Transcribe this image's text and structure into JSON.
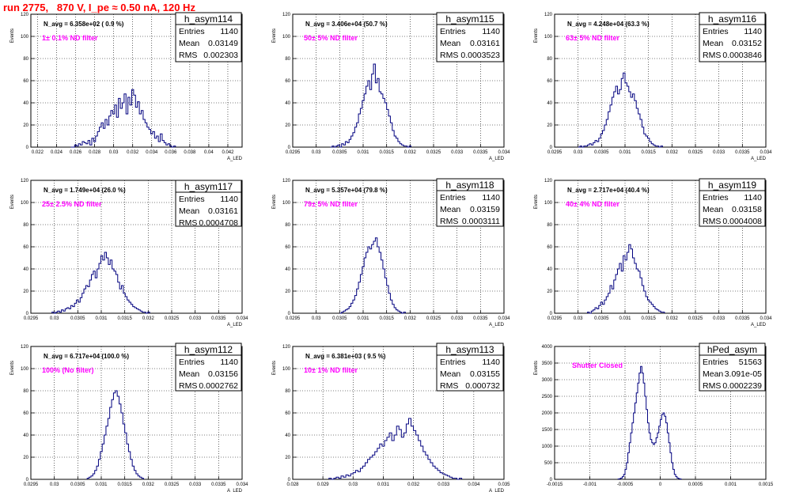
{
  "header": {
    "title": "run 2775,   870 V, I_pe ≈ 0.50 nA, 120 Hz",
    "title_color": "#ff0000"
  },
  "style": {
    "histogram_color": "#00007f",
    "annotation_color": "#ff00ff",
    "grid_color": "#000000"
  },
  "chart_data": [
    {
      "type": "bar",
      "name": "h_asym114",
      "navg": "N_avg = 6.358e+02 ( 0.9 %)",
      "filter": "1± 0.1% ND filter",
      "stats": [
        {
          "label": "Entries",
          "value": "1140"
        },
        {
          "label": "Mean",
          "value": "0.03149"
        },
        {
          "label": "RMS",
          "value": "0.002303"
        }
      ],
      "xlabel": "A_LED",
      "ylabel": "Events",
      "xlim": [
        0.0213,
        0.0435
      ],
      "ylim": [
        0,
        120
      ],
      "x_ticks": [
        "0.022",
        "0.024",
        "0.026",
        "0.028",
        "0.03",
        "0.032",
        "0.034",
        "0.036",
        "0.038",
        "0.04",
        "0.042"
      ],
      "x_tick_values": [
        0.022,
        0.024,
        0.026,
        0.028,
        0.03,
        0.032,
        0.034,
        0.036,
        0.038,
        0.04,
        0.042
      ],
      "y_ticks": [
        0,
        20,
        40,
        60,
        80,
        100,
        120
      ],
      "bin_start": 0.0255,
      "bin_width": 0.0002,
      "values": [
        0,
        0,
        2,
        1,
        3,
        2,
        5,
        4,
        3,
        6,
        2,
        8,
        5,
        10,
        14,
        18,
        22,
        17,
        25,
        20,
        28,
        33,
        30,
        38,
        27,
        44,
        35,
        40,
        48,
        30,
        45,
        38,
        52,
        47,
        36,
        41,
        30,
        33,
        25,
        22,
        18,
        16,
        12,
        14,
        8,
        10,
        5,
        12,
        6,
        4,
        2,
        3,
        1,
        0,
        1
      ]
    },
    {
      "type": "bar",
      "name": "h_asym115",
      "navg": "N_avg = 3.406e+04 (50.7 %)",
      "filter": "50± 5% ND filter",
      "stats": [
        {
          "label": "Entries",
          "value": "1140"
        },
        {
          "label": "Mean",
          "value": "0.03161"
        },
        {
          "label": "RMS",
          "value": "0.0003523"
        }
      ],
      "xlabel": "A_LED",
      "ylabel": "Events",
      "xlim": [
        0.0295,
        0.034
      ],
      "ylim": [
        0,
        120
      ],
      "x_ticks": [
        "0.0295",
        "0.03",
        "0.0305",
        "0.031",
        "0.0315",
        "0.032",
        "0.0325",
        "0.033",
        "0.0335",
        "0.034"
      ],
      "x_tick_values": [
        0.0295,
        0.03,
        0.0305,
        0.031,
        0.0315,
        0.032,
        0.0325,
        0.033,
        0.0335,
        0.034
      ],
      "y_ticks": [
        0,
        20,
        40,
        60,
        80,
        100,
        120
      ],
      "bin_start": 0.0303,
      "bin_width": 4e-05,
      "values": [
        0,
        1,
        0,
        1,
        2,
        0,
        3,
        2,
        5,
        4,
        7,
        10,
        13,
        18,
        22,
        30,
        35,
        42,
        48,
        55,
        60,
        52,
        66,
        75,
        58,
        62,
        50,
        48,
        44,
        40,
        34,
        28,
        22,
        15,
        10,
        8,
        5,
        3,
        2,
        1,
        1,
        0,
        1
      ]
    },
    {
      "type": "bar",
      "name": "h_asym116",
      "navg": "N_avg = 4.248e+04 (63.3 %)",
      "filter": "63± 5% ND filter",
      "stats": [
        {
          "label": "Entries",
          "value": "1140"
        },
        {
          "label": "Mean",
          "value": "0.03152"
        },
        {
          "label": "RMS",
          "value": "0.0003846"
        }
      ],
      "xlabel": "A_LED",
      "ylabel": "Events",
      "xlim": [
        0.0295,
        0.034
      ],
      "ylim": [
        0,
        120
      ],
      "x_ticks": [
        "0.0295",
        "0.03",
        "0.0305",
        "0.031",
        "0.0315",
        "0.032",
        "0.0325",
        "0.033",
        "0.0335",
        "0.034"
      ],
      "x_tick_values": [
        0.0295,
        0.03,
        0.0305,
        0.031,
        0.0315,
        0.032,
        0.0325,
        0.033,
        0.0335,
        0.034
      ],
      "y_ticks": [
        0,
        20,
        40,
        60,
        80,
        100,
        120
      ],
      "bin_start": 0.03,
      "bin_width": 4e-05,
      "values": [
        0,
        1,
        0,
        1,
        1,
        2,
        3,
        2,
        4,
        6,
        5,
        8,
        12,
        15,
        20,
        25,
        32,
        38,
        45,
        50,
        55,
        48,
        52,
        62,
        67,
        58,
        55,
        50,
        45,
        48,
        42,
        35,
        30,
        25,
        18,
        12,
        10,
        8,
        5,
        3,
        2,
        1,
        1,
        0,
        1
      ]
    },
    {
      "type": "bar",
      "name": "h_asym117",
      "navg": "N_avg = 1.749e+04 (26.0 %)",
      "filter": "25± 2.5% ND filter",
      "stats": [
        {
          "label": "Entries",
          "value": "1140"
        },
        {
          "label": "Mean",
          "value": "0.03161"
        },
        {
          "label": "RMS",
          "value": "0.0004708"
        }
      ],
      "xlabel": "A_LED",
      "ylabel": "Events",
      "xlim": [
        0.0295,
        0.034
      ],
      "ylim": [
        0,
        120
      ],
      "x_ticks": [
        "0.0295",
        "0.03",
        "0.0305",
        "0.031",
        "0.0315",
        "0.032",
        "0.0325",
        "0.033",
        "0.0335",
        "0.034"
      ],
      "x_tick_values": [
        0.0295,
        0.03,
        0.0305,
        0.031,
        0.0315,
        0.032,
        0.0325,
        0.033,
        0.0335,
        0.034
      ],
      "y_ticks": [
        0,
        20,
        40,
        60,
        80,
        100,
        120
      ],
      "bin_start": 0.02995,
      "bin_width": 4e-05,
      "values": [
        1,
        0,
        1,
        2,
        1,
        3,
        2,
        4,
        5,
        4,
        7,
        6,
        9,
        12,
        10,
        14,
        18,
        22,
        25,
        24,
        30,
        35,
        38,
        32,
        40,
        45,
        52,
        48,
        55,
        50,
        44,
        48,
        40,
        38,
        35,
        28,
        22,
        25,
        18,
        15,
        12,
        10,
        8,
        6,
        5,
        4,
        3,
        2,
        1,
        1,
        0,
        1
      ]
    },
    {
      "type": "bar",
      "name": "h_asym118",
      "navg": "N_avg = 5.357e+04 (79.8 %)",
      "filter": "79± 5% ND filter",
      "stats": [
        {
          "label": "Entries",
          "value": "1140"
        },
        {
          "label": "Mean",
          "value": "0.03159"
        },
        {
          "label": "RMS",
          "value": "0.0003111"
        }
      ],
      "xlabel": "A_LED",
      "ylabel": "Events",
      "xlim": [
        0.0295,
        0.034
      ],
      "ylim": [
        0,
        120
      ],
      "x_ticks": [
        "0.0295",
        "0.03",
        "0.0305",
        "0.031",
        "0.0315",
        "0.032",
        "0.0325",
        "0.033",
        "0.0335",
        "0.034"
      ],
      "x_tick_values": [
        0.0295,
        0.03,
        0.0305,
        0.031,
        0.0315,
        0.032,
        0.0325,
        0.033,
        0.0335,
        0.034
      ],
      "y_ticks": [
        0,
        20,
        40,
        60,
        80,
        100,
        120
      ],
      "bin_start": 0.0305,
      "bin_width": 4e-05,
      "values": [
        0,
        1,
        2,
        3,
        4,
        6,
        9,
        12,
        16,
        22,
        28,
        35,
        42,
        50,
        55,
        60,
        58,
        62,
        65,
        68,
        60,
        55,
        48,
        40,
        32,
        25,
        18,
        12,
        8,
        5,
        3,
        2,
        1,
        0,
        1
      ]
    },
    {
      "type": "bar",
      "name": "h_asym119",
      "navg": "N_avg = 2.717e+04 (40.4 %)",
      "filter": "40± 4% ND filter",
      "stats": [
        {
          "label": "Entries",
          "value": "1140"
        },
        {
          "label": "Mean",
          "value": "0.03158"
        },
        {
          "label": "RMS",
          "value": "0.0004008"
        }
      ],
      "xlabel": "A_LED",
      "ylabel": "Events",
      "xlim": [
        0.0295,
        0.034
      ],
      "ylim": [
        0,
        120
      ],
      "x_ticks": [
        "0.0295",
        "0.03",
        "0.0305",
        "0.031",
        "0.0315",
        "0.032",
        "0.0325",
        "0.033",
        "0.0335",
        "0.034"
      ],
      "x_tick_values": [
        0.0295,
        0.03,
        0.0305,
        0.031,
        0.0315,
        0.032,
        0.0325,
        0.033,
        0.0335,
        0.034
      ],
      "y_ticks": [
        0,
        20,
        40,
        60,
        80,
        100,
        120
      ],
      "bin_start": 0.0302,
      "bin_width": 4e-05,
      "values": [
        1,
        0,
        2,
        3,
        5,
        4,
        7,
        10,
        8,
        12,
        15,
        18,
        25,
        22,
        30,
        35,
        40,
        45,
        38,
        52,
        48,
        55,
        62,
        58,
        50,
        45,
        40,
        38,
        32,
        25,
        20,
        15,
        12,
        10,
        8,
        6,
        4,
        3,
        2,
        1,
        1
      ]
    },
    {
      "type": "bar",
      "name": "h_asym112",
      "navg": "N_avg = 6.717e+04 (100.0 %)",
      "filter": "100% (No filter)",
      "stats": [
        {
          "label": "Entries",
          "value": "1140"
        },
        {
          "label": "Mean",
          "value": "0.03156"
        },
        {
          "label": "RMS",
          "value": "0.0002762"
        }
      ],
      "xlabel": "A_LED",
      "ylabel": "Events",
      "xlim": [
        0.0295,
        0.034
      ],
      "ylim": [
        0,
        120
      ],
      "x_ticks": [
        "0.0295",
        "0.03",
        "0.0305",
        "0.031",
        "0.0315",
        "0.032",
        "0.0325",
        "0.033",
        "0.0335",
        "0.034"
      ],
      "x_tick_values": [
        0.0295,
        0.03,
        0.0305,
        0.031,
        0.0315,
        0.032,
        0.0325,
        0.033,
        0.0335,
        0.034
      ],
      "y_ticks": [
        0,
        20,
        40,
        60,
        80,
        100,
        120
      ],
      "bin_start": 0.0307,
      "bin_width": 4e-05,
      "values": [
        1,
        2,
        3,
        5,
        8,
        12,
        18,
        25,
        32,
        40,
        48,
        55,
        65,
        72,
        78,
        80,
        75,
        68,
        60,
        50,
        42,
        32,
        25,
        18,
        12,
        8,
        5,
        3,
        2,
        1
      ]
    },
    {
      "type": "bar",
      "name": "h_asym113",
      "navg": "N_avg = 6.381e+03 ( 9.5 %)",
      "filter": "10± 1% ND filter",
      "stats": [
        {
          "label": "Entries",
          "value": "1140"
        },
        {
          "label": "Mean",
          "value": "0.03155"
        },
        {
          "label": "RMS",
          "value": "0.000732"
        }
      ],
      "xlabel": "A_LED",
      "ylabel": "Events",
      "xlim": [
        0.028,
        0.035
      ],
      "ylim": [
        0,
        120
      ],
      "x_ticks": [
        "0.028",
        "0.029",
        "0.03",
        "0.031",
        "0.032",
        "0.033",
        "0.034",
        "0.035"
      ],
      "x_tick_values": [
        0.028,
        0.029,
        0.03,
        0.031,
        0.032,
        0.033,
        0.034,
        0.035
      ],
      "y_ticks": [
        0,
        20,
        40,
        60,
        80,
        100,
        120
      ],
      "bin_start": 0.0292,
      "bin_width": 8e-05,
      "values": [
        1,
        0,
        1,
        2,
        1,
        3,
        2,
        4,
        3,
        5,
        6,
        8,
        7,
        10,
        12,
        15,
        18,
        20,
        22,
        25,
        28,
        32,
        30,
        35,
        38,
        42,
        35,
        40,
        48,
        45,
        38,
        42,
        50,
        55,
        48,
        44,
        40,
        35,
        30,
        25,
        22,
        18,
        15,
        12,
        10,
        8,
        6,
        5,
        4,
        3,
        2,
        1,
        1,
        0,
        1
      ]
    },
    {
      "type": "bar",
      "name": "hPed_asym",
      "navg": "",
      "filter": "Shutter Closed",
      "stats": [
        {
          "label": "Entries",
          "value": "51563"
        },
        {
          "label": "Mean",
          "value": "3.091e-05"
        },
        {
          "label": "RMS",
          "value": "0.0002239"
        }
      ],
      "xlabel": "",
      "ylabel": "Events",
      "xlim": [
        -0.0015,
        0.0015
      ],
      "ylim": [
        0,
        4000
      ],
      "x_ticks": [
        "-0.0015",
        "-0.001",
        "-0.0005",
        "0",
        "0.0005",
        "0.001",
        "0.0015"
      ],
      "x_tick_values": [
        -0.0015,
        -0.001,
        -0.0005,
        0,
        0.0005,
        0.001,
        0.0015
      ],
      "y_ticks": [
        0,
        500,
        1000,
        1500,
        2000,
        2500,
        3000,
        3500,
        4000
      ],
      "bin_start": -0.0006,
      "bin_width": 2e-05,
      "values": [
        10,
        20,
        40,
        80,
        150,
        300,
        500,
        800,
        1100,
        1400,
        1700,
        2000,
        2300,
        2600,
        2900,
        3200,
        3400,
        3200,
        2900,
        2500,
        2100,
        1700,
        1400,
        1200,
        1100,
        1050,
        1100,
        1250,
        1400,
        1600,
        1800,
        1950,
        2000,
        1900,
        1700,
        1400,
        1100,
        800,
        500,
        300,
        150,
        80,
        40,
        20,
        10
      ]
    }
  ]
}
